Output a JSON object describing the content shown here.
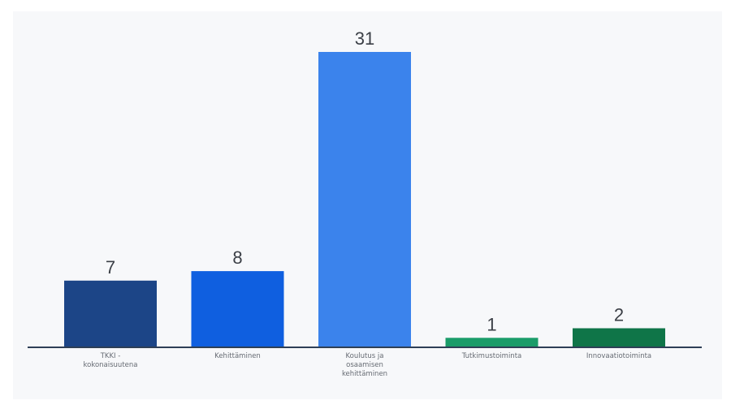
{
  "chart_data": {
    "type": "bar",
    "categories": [
      [
        "TKKI -",
        "kokonaisuutena"
      ],
      [
        "Kehittäminen"
      ],
      [
        "Koulutus ja",
        "osaamisen",
        "kehittäminen"
      ],
      [
        "Tutkimustoiminta"
      ],
      [
        "Innovaatiotoiminta"
      ]
    ],
    "values": [
      7,
      8,
      31,
      1,
      2
    ],
    "colors": [
      "#1c4587",
      "#0f5fe0",
      "#3b83ec",
      "#1a9c69",
      "#0f7548"
    ],
    "title": "",
    "xlabel": "",
    "ylabel": "",
    "ylim": [
      0,
      31
    ],
    "grid": false,
    "legend": "none"
  }
}
